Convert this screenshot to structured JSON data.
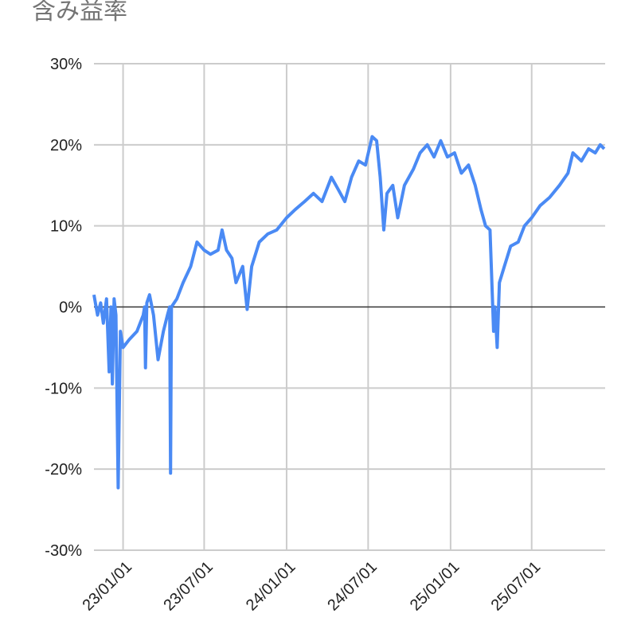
{
  "chart_data": {
    "type": "line",
    "title": "含み益率",
    "x": [
      "22/10/28",
      "22/11/05",
      "22/11/12",
      "22/11/18",
      "22/11/25",
      "22/12/01",
      "22/12/05",
      "22/12/08",
      "22/12/12",
      "22/12/16",
      "22/12/21",
      "22/12/26",
      "23/01/01",
      "23/01/15",
      "23/02/01",
      "23/02/15",
      "23/02/18",
      "23/02/20",
      "23/02/23",
      "23/03/01",
      "23/03/10",
      "23/03/20",
      "23/04/01",
      "23/04/10",
      "23/04/15",
      "23/04/17",
      "23/04/19",
      "23/05/01",
      "23/05/15",
      "23/06/01",
      "23/06/15",
      "23/07/01",
      "23/07/15",
      "23/08/01",
      "23/08/10",
      "23/08/20",
      "23/09/01",
      "23/09/10",
      "23/09/25",
      "23/10/05",
      "23/10/15",
      "23/11/01",
      "23/11/20",
      "23/12/10",
      "24/01/01",
      "24/01/20",
      "24/02/10",
      "24/03/01",
      "24/03/20",
      "24/04/10",
      "24/04/25",
      "24/05/10",
      "24/05/25",
      "24/06/10",
      "24/06/25",
      "24/07/10",
      "24/07/20",
      "24/07/28",
      "24/08/05",
      "24/08/12",
      "24/08/25",
      "24/09/05",
      "24/09/20",
      "24/10/10",
      "24/10/25",
      "24/11/10",
      "24/11/25",
      "24/12/10",
      "24/12/25",
      "25/01/10",
      "25/01/25",
      "25/02/10",
      "25/02/25",
      "25/03/10",
      "25/03/20",
      "25/03/30",
      "25/04/07",
      "25/04/10",
      "25/04/15",
      "25/04/20",
      "25/05/01",
      "25/05/15",
      "25/06/01",
      "25/06/15",
      "25/07/01",
      "25/07/20",
      "25/08/10",
      "25/09/01",
      "25/09/20",
      "25/10/01",
      "25/10/20",
      "25/11/05",
      "25/11/20",
      "25/12/01",
      "25/12/10"
    ],
    "series": [
      {
        "name": "含み益率",
        "color": "#4a8af4",
        "values": [
          1.5,
          -1,
          0.5,
          -2,
          1,
          -8,
          0,
          -9.5,
          1,
          -1,
          -22.3,
          -3,
          -5,
          -4,
          -3,
          -1,
          0,
          -7.5,
          0.5,
          1.5,
          -1,
          -6.5,
          -3,
          -1,
          0,
          -20.5,
          0,
          1,
          3,
          5,
          8,
          7,
          6.5,
          7,
          9.5,
          7,
          6,
          3,
          5,
          -0.3,
          5,
          8,
          9,
          9.5,
          11,
          12,
          13,
          14,
          13,
          16,
          14.5,
          13,
          16,
          18,
          17.5,
          21,
          20.5,
          16,
          9.5,
          14,
          15,
          11,
          15,
          17,
          19,
          20,
          18.5,
          20.5,
          18.5,
          19,
          16.5,
          17.5,
          15,
          12,
          10,
          9.5,
          -3,
          0,
          -5,
          3,
          5,
          7.5,
          8,
          10,
          11,
          12.5,
          13.5,
          15,
          16.5,
          19,
          18,
          19.5,
          19,
          20,
          19.5
        ]
      }
    ],
    "xlim": [
      "22/10/28",
      "25/12/12"
    ],
    "xticks": [
      "23/01/01",
      "23/07/01",
      "24/01/01",
      "24/07/01",
      "25/01/01",
      "25/07/01"
    ],
    "ylim": [
      -30,
      30
    ],
    "yticks": [
      {
        "value": -30,
        "label": "-30%"
      },
      {
        "value": -20,
        "label": "-20%"
      },
      {
        "value": -10,
        "label": "-10%"
      },
      {
        "value": 0,
        "label": "0%"
      },
      {
        "value": 10,
        "label": "10%"
      },
      {
        "value": 20,
        "label": "20%"
      },
      {
        "value": 30,
        "label": "30%"
      }
    ],
    "grid": true
  }
}
